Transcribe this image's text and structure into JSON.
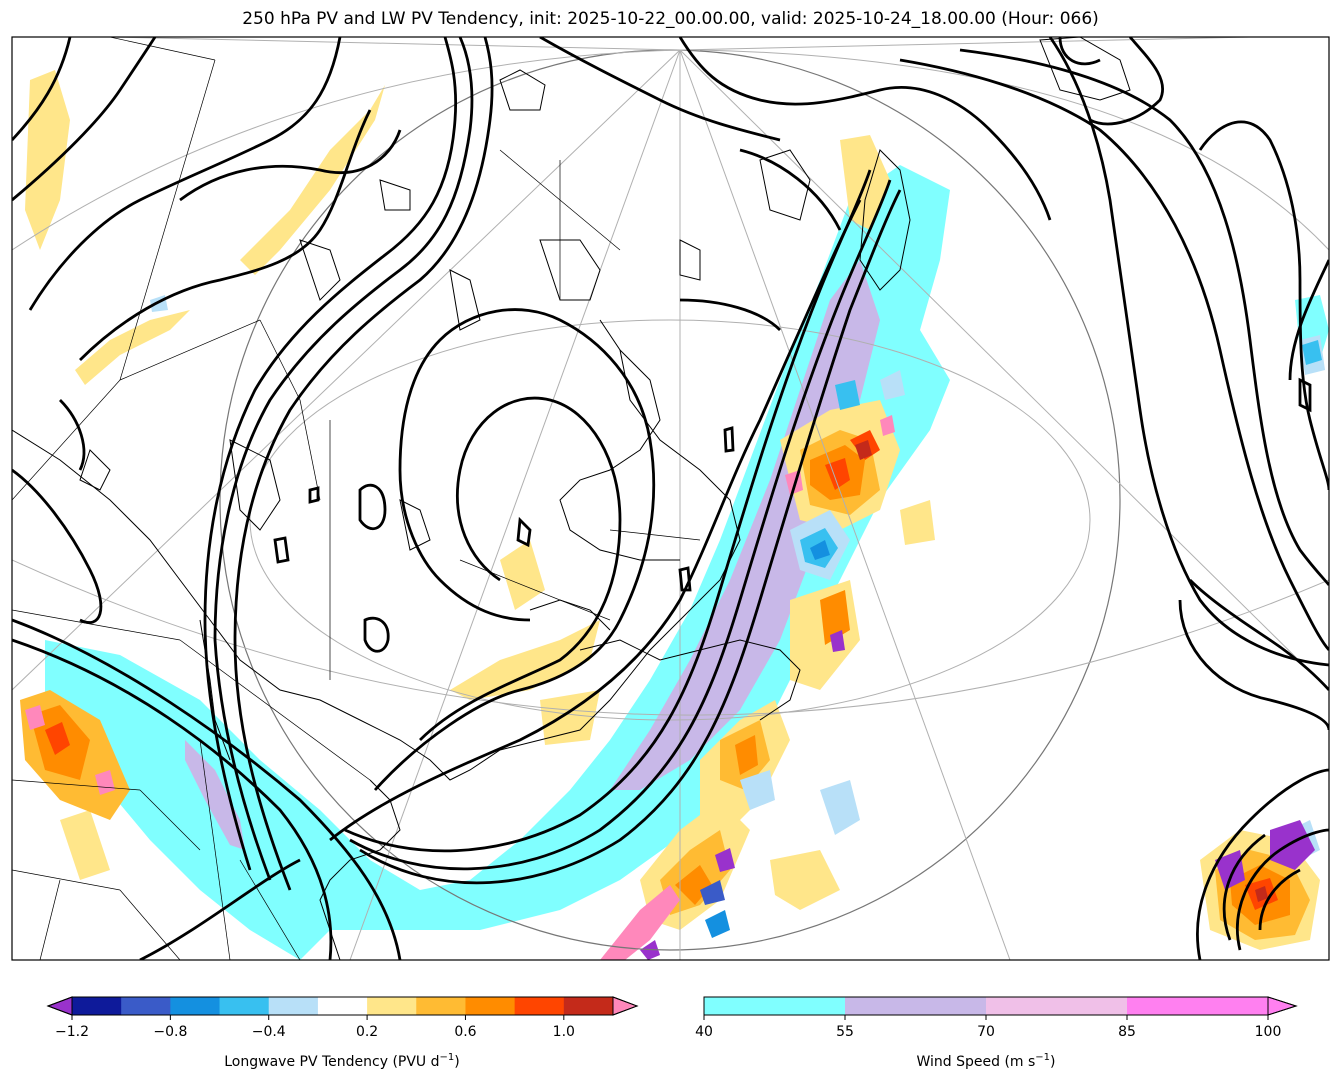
{
  "title": "250 hPa PV and LW PV Tendency, init: 2025-10-22_00.00.00, valid: 2025-10-24_18.00.00 (Hour: 066)",
  "colorbar_pv": {
    "label": "Longwave PV Tendency (PVU d",
    "label_sup": "−1",
    "label_end": ")",
    "tick_labels": [
      "−1.2",
      "−0.8",
      "−0.4",
      "0.2",
      "0.6",
      "1.0"
    ],
    "tick_values": [
      -1.2,
      -0.8,
      -0.4,
      0.2,
      0.6,
      1.0
    ],
    "bounds": [
      -1.2,
      -1.0,
      -0.8,
      -0.6,
      -0.4,
      -0.2,
      0.2,
      0.4,
      0.6,
      0.8,
      1.0,
      1.2
    ],
    "colors": [
      "#0e1a9a",
      "#3a5bc8",
      "#1490e0",
      "#38c0f0",
      "#b8e0f8",
      "#ffffff",
      "#ffe68a",
      "#ffbb33",
      "#ff8c00",
      "#ff4500",
      "#c42a1a"
    ],
    "under_color": "#9932cc",
    "over_color": "#ff88bb"
  },
  "colorbar_wind": {
    "label": "Wind Speed (m s",
    "label_sup": "−1",
    "label_end": ")",
    "tick_labels": [
      "40",
      "55",
      "70",
      "85",
      "100"
    ],
    "bounds": [
      40,
      55,
      70,
      85,
      100
    ],
    "colors": [
      "#80ffff",
      "#c8b8e8",
      "#f0c0e8",
      "#ff80f0"
    ],
    "over_color": "#ff80f0"
  }
}
